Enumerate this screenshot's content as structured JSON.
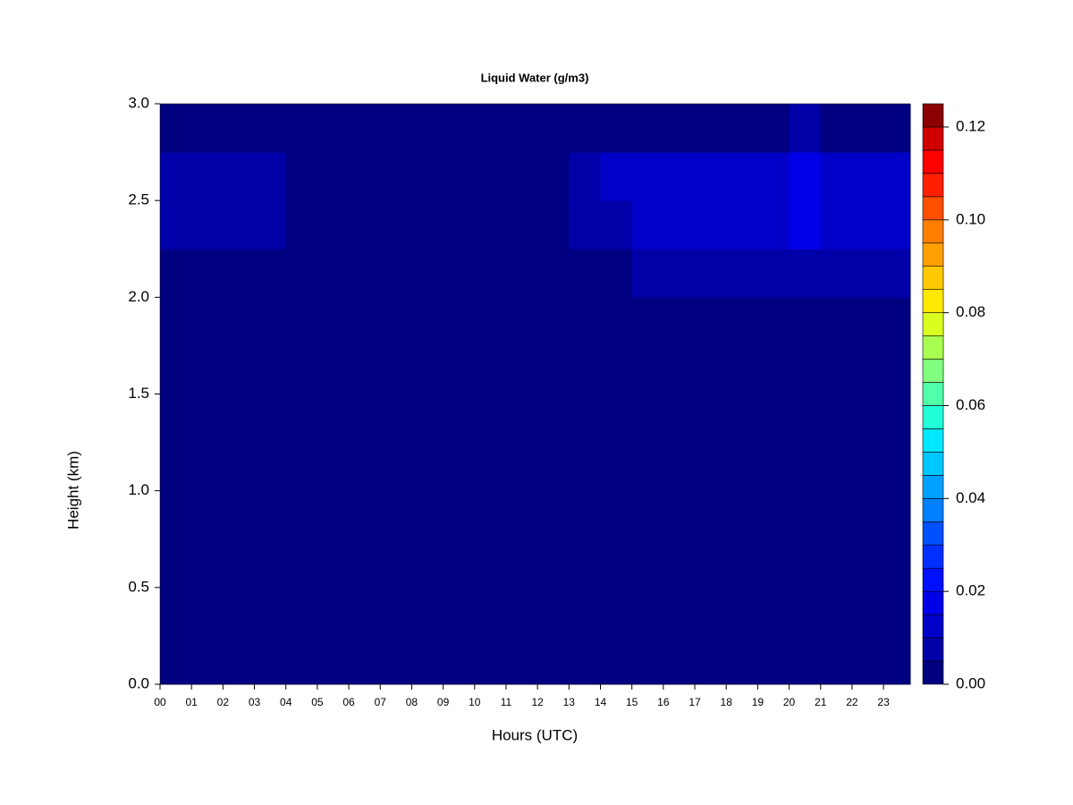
{
  "chart_data": {
    "type": "heatmap",
    "title": "Liquid Water (g/m3)",
    "x_label": "Hours (UTC)",
    "y_label": "Height (km)",
    "xlim": [
      0,
      23.85
    ],
    "ylim": [
      0,
      3
    ],
    "xticks": [
      {
        "value": 0,
        "label": "00"
      },
      {
        "value": 1,
        "label": "01"
      },
      {
        "value": 2,
        "label": "02"
      },
      {
        "value": 3,
        "label": "03"
      },
      {
        "value": 4,
        "label": "04"
      },
      {
        "value": 5,
        "label": "05"
      },
      {
        "value": 6,
        "label": "06"
      },
      {
        "value": 7,
        "label": "07"
      },
      {
        "value": 8,
        "label": "08"
      },
      {
        "value": 9,
        "label": "09"
      },
      {
        "value": 10,
        "label": "10"
      },
      {
        "value": 11,
        "label": "11"
      },
      {
        "value": 12,
        "label": "12"
      },
      {
        "value": 13,
        "label": "13"
      },
      {
        "value": 14,
        "label": "14"
      },
      {
        "value": 15,
        "label": "15"
      },
      {
        "value": 16,
        "label": "16"
      },
      {
        "value": 17,
        "label": "17"
      },
      {
        "value": 18,
        "label": "18"
      },
      {
        "value": 19,
        "label": "19"
      },
      {
        "value": 20,
        "label": "20"
      },
      {
        "value": 21,
        "label": "21"
      },
      {
        "value": 22,
        "label": "22"
      },
      {
        "value": 23,
        "label": "23"
      }
    ],
    "yticks": [
      {
        "value": 0,
        "label": "0.0"
      },
      0.5,
      {
        "value": 1,
        "label": "1.0"
      },
      1.5,
      {
        "value": 2,
        "label": "2.0"
      },
      2.5,
      {
        "value": 3,
        "label": "3.0"
      }
    ],
    "x": [
      0,
      1,
      2,
      3,
      4,
      5,
      6,
      7,
      8,
      9,
      10,
      11,
      12,
      13,
      14,
      15,
      16,
      17,
      18,
      19,
      20,
      21,
      22,
      23
    ],
    "y": [
      0,
      0.25,
      0.5,
      0.75,
      1,
      1.25,
      1.5,
      1.75,
      2,
      2.25,
      2.5,
      2.75
    ],
    "z": [
      [
        0.002,
        0.002,
        0.002,
        0.002,
        0.002,
        0.002,
        0.002,
        0.002,
        0.002,
        0.002,
        0.002,
        0.002,
        0.002,
        0.002,
        0.002,
        0.002,
        0.002,
        0.002,
        0.002,
        0.002,
        0.002,
        0.002,
        0.002,
        0.002
      ],
      [
        0.002,
        0.002,
        0.002,
        0.002,
        0.002,
        0.002,
        0.002,
        0.002,
        0.002,
        0.002,
        0.002,
        0.002,
        0.002,
        0.002,
        0.002,
        0.002,
        0.002,
        0.002,
        0.002,
        0.002,
        0.002,
        0.002,
        0.002,
        0.002
      ],
      [
        0.002,
        0.002,
        0.002,
        0.002,
        0.002,
        0.002,
        0.002,
        0.002,
        0.002,
        0.002,
        0.002,
        0.002,
        0.002,
        0.002,
        0.002,
        0.002,
        0.002,
        0.002,
        0.002,
        0.002,
        0.002,
        0.002,
        0.002,
        0.002
      ],
      [
        0.002,
        0.002,
        0.002,
        0.002,
        0.002,
        0.002,
        0.002,
        0.002,
        0.002,
        0.002,
        0.002,
        0.002,
        0.002,
        0.002,
        0.002,
        0.002,
        0.002,
        0.002,
        0.002,
        0.002,
        0.002,
        0.002,
        0.002,
        0.002
      ],
      [
        0.002,
        0.002,
        0.002,
        0.002,
        0.002,
        0.002,
        0.002,
        0.002,
        0.002,
        0.002,
        0.002,
        0.002,
        0.002,
        0.002,
        0.002,
        0.002,
        0.002,
        0.002,
        0.002,
        0.002,
        0.002,
        0.002,
        0.002,
        0.002
      ],
      [
        0.002,
        0.002,
        0.002,
        0.002,
        0.002,
        0.002,
        0.002,
        0.002,
        0.002,
        0.002,
        0.002,
        0.002,
        0.002,
        0.002,
        0.002,
        0.002,
        0.002,
        0.002,
        0.002,
        0.002,
        0.002,
        0.002,
        0.002,
        0.002
      ],
      [
        0.002,
        0.002,
        0.002,
        0.002,
        0.002,
        0.002,
        0.002,
        0.002,
        0.002,
        0.002,
        0.002,
        0.002,
        0.002,
        0.002,
        0.002,
        0.002,
        0.002,
        0.002,
        0.002,
        0.002,
        0.002,
        0.002,
        0.002,
        0.002
      ],
      [
        0.002,
        0.002,
        0.002,
        0.002,
        0.002,
        0.002,
        0.002,
        0.002,
        0.002,
        0.002,
        0.002,
        0.002,
        0.002,
        0.002,
        0.002,
        0.002,
        0.002,
        0.002,
        0.002,
        0.002,
        0.002,
        0.002,
        0.002,
        0.002
      ],
      [
        0.004,
        0.004,
        0.004,
        0.004,
        0.002,
        0.002,
        0.002,
        0.002,
        0.002,
        0.002,
        0.002,
        0.002,
        0.002,
        0.002,
        0.002,
        0.008,
        0.008,
        0.008,
        0.008,
        0.008,
        0.008,
        0.008,
        0.008,
        0.008
      ],
      [
        0.007,
        0.007,
        0.007,
        0.007,
        0.002,
        0.002,
        0.002,
        0.002,
        0.002,
        0.002,
        0.002,
        0.002,
        0.002,
        0.006,
        0.009,
        0.013,
        0.013,
        0.013,
        0.013,
        0.013,
        0.016,
        0.013,
        0.013,
        0.013
      ],
      [
        0.006,
        0.006,
        0.006,
        0.006,
        0.002,
        0.002,
        0.002,
        0.002,
        0.002,
        0.002,
        0.002,
        0.002,
        0.002,
        0.008,
        0.011,
        0.014,
        0.014,
        0.014,
        0.014,
        0.014,
        0.017,
        0.014,
        0.014,
        0.014
      ],
      [
        0.002,
        0.002,
        0.002,
        0.002,
        0.002,
        0.002,
        0.002,
        0.002,
        0.002,
        0.002,
        0.002,
        0.002,
        0.002,
        0.002,
        0.002,
        0.002,
        0.002,
        0.002,
        0.002,
        0.002,
        0.006,
        0.002,
        0.002,
        0.002
      ]
    ],
    "zlim": [
      0,
      0.125
    ],
    "zticks": [
      {
        "value": 0,
        "label": "0.00"
      },
      {
        "value": 0.02,
        "label": "0.02"
      },
      {
        "value": 0.04,
        "label": "0.04"
      },
      {
        "value": 0.06,
        "label": "0.06"
      },
      {
        "value": 0.08,
        "label": "0.08"
      },
      {
        "value": 0.1,
        "label": "0.10"
      },
      {
        "value": 0.12,
        "label": "0.12"
      }
    ],
    "colors": [
      "#000080",
      "#0000A8",
      "#0000C8",
      "#0000E8",
      "#0010FF",
      "#0030FF",
      "#0050FF",
      "#0080FF",
      "#00A0FF",
      "#00C8FF",
      "#00E8FF",
      "#20FFD8",
      "#50FFA8",
      "#80FF80",
      "#A8FF50",
      "#D8FF20",
      "#FFE800",
      "#FFC800",
      "#FFA000",
      "#FF8000",
      "#FF5000",
      "#FF2000",
      "#FF0000",
      "#D00000",
      "#8B0000"
    ]
  }
}
